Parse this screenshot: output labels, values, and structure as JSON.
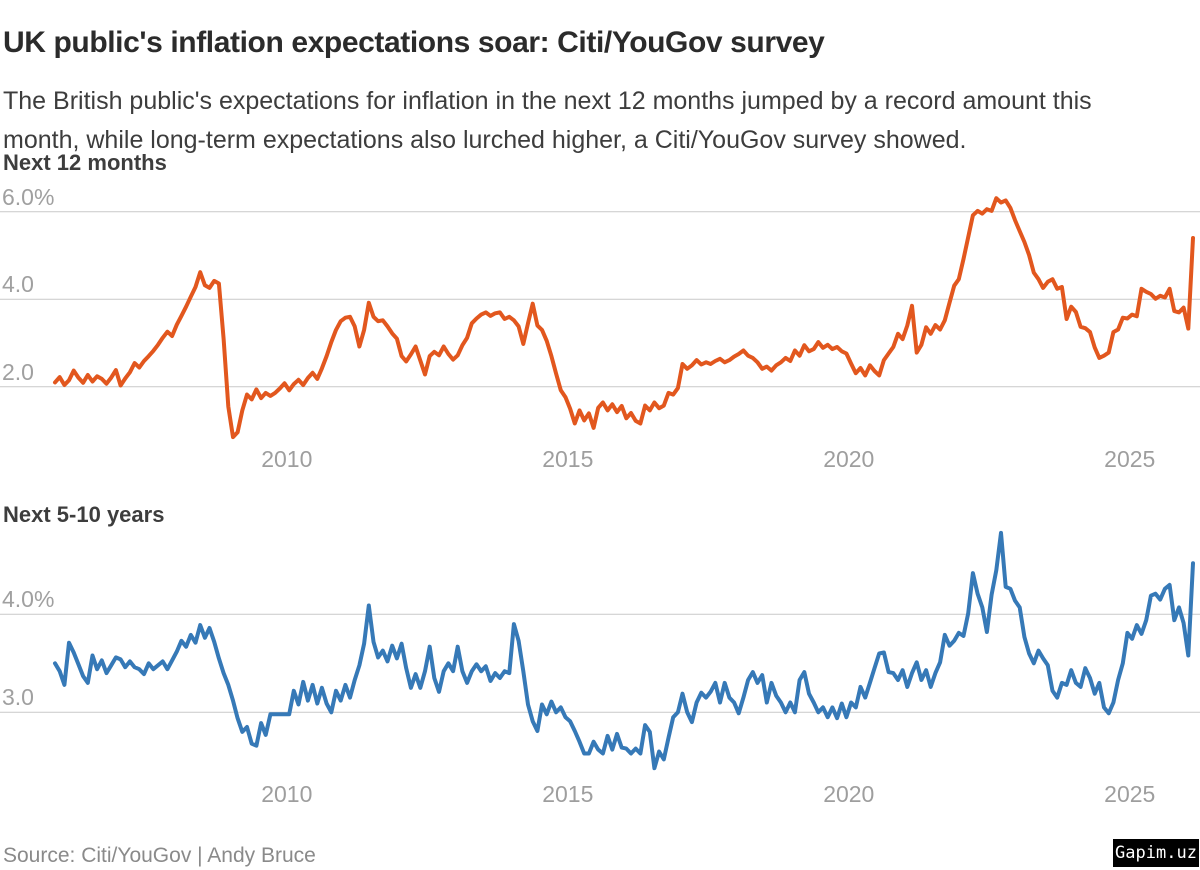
{
  "header": {
    "title": "UK public's inflation expectations soar: Citi/YouGov survey",
    "subtitle": "The British public's expectations for inflation in the next 12 months jumped by a record amount this month, while long-term expectations also lurched higher, a Citi/YouGov survey showed."
  },
  "footer": {
    "source": "Source: Citi/YouGov | Andy Bruce",
    "watermark": "Gapim.uz"
  },
  "colors": {
    "line_next_12_months": "#e2571e",
    "line_next_5_10_years": "#3679b7",
    "gridline": "#c9c9c9",
    "axis_text": "#9e9e9e",
    "heading_text": "#3d3d3d",
    "title_text": "#2b2b2b"
  },
  "chart_data": [
    {
      "type": "line",
      "title": "Next 12 months",
      "legend_position": "none",
      "grid": "horizontal-only",
      "x_axis": {
        "range": [
          2005.875,
          2026.125
        ],
        "ticks": [
          2010,
          2015,
          2020,
          2025
        ],
        "tick_labels": [
          "2010",
          "2015",
          "2020",
          "2025"
        ]
      },
      "y_axis": {
        "range": [
          0.6,
          6.75
        ],
        "unit": "percent",
        "gridlines": [
          {
            "value": 6.0,
            "label": "6.0%"
          },
          {
            "value": 4.0,
            "label": "4.0"
          },
          {
            "value": 2.0,
            "label": "2.0"
          }
        ]
      },
      "series": [
        {
          "name": "UK public inflation expectations, next 12 months (%)",
          "color": "#e2571e",
          "x_start": 2005.875,
          "x_step": 0.0833333,
          "values": [
            2.1,
            2.22,
            2.04,
            2.15,
            2.37,
            2.21,
            2.09,
            2.27,
            2.12,
            2.24,
            2.18,
            2.07,
            2.21,
            2.38,
            2.03,
            2.19,
            2.33,
            2.54,
            2.44,
            2.59,
            2.7,
            2.82,
            2.96,
            3.12,
            3.26,
            3.16,
            3.42,
            3.62,
            3.83,
            4.06,
            4.28,
            4.62,
            4.32,
            4.26,
            4.42,
            4.36,
            3.1,
            1.55,
            0.85,
            0.96,
            1.46,
            1.82,
            1.71,
            1.94,
            1.74,
            1.86,
            1.79,
            1.86,
            1.96,
            2.08,
            1.92,
            2.06,
            2.16,
            2.04,
            2.2,
            2.32,
            2.18,
            2.42,
            2.7,
            3.02,
            3.3,
            3.5,
            3.58,
            3.6,
            3.38,
            2.92,
            3.3,
            3.92,
            3.6,
            3.5,
            3.52,
            3.38,
            3.22,
            3.1,
            2.7,
            2.58,
            2.74,
            2.92,
            2.6,
            2.28,
            2.7,
            2.8,
            2.72,
            2.92,
            2.75,
            2.62,
            2.72,
            2.95,
            3.12,
            3.45,
            3.56,
            3.65,
            3.7,
            3.62,
            3.68,
            3.7,
            3.55,
            3.6,
            3.52,
            3.38,
            2.98,
            3.45,
            3.9,
            3.4,
            3.3,
            3.05,
            2.7,
            2.3,
            1.92,
            1.76,
            1.5,
            1.16,
            1.46,
            1.23,
            1.39,
            1.06,
            1.52,
            1.64,
            1.46,
            1.6,
            1.42,
            1.56,
            1.28,
            1.4,
            1.22,
            1.16,
            1.57,
            1.46,
            1.64,
            1.51,
            1.57,
            1.86,
            1.82,
            1.97,
            2.52,
            2.41,
            2.49,
            2.61,
            2.51,
            2.56,
            2.52,
            2.59,
            2.64,
            2.56,
            2.61,
            2.69,
            2.75,
            2.83,
            2.71,
            2.66,
            2.56,
            2.41,
            2.46,
            2.37,
            2.49,
            2.56,
            2.66,
            2.59,
            2.83,
            2.71,
            2.95,
            2.81,
            2.86,
            3.02,
            2.89,
            2.96,
            2.86,
            2.91,
            2.81,
            2.76,
            2.53,
            2.31,
            2.43,
            2.26,
            2.49,
            2.36,
            2.26,
            2.61,
            2.76,
            2.91,
            3.21,
            3.09,
            3.4,
            3.85,
            2.78,
            2.96,
            3.36,
            3.21,
            3.41,
            3.31,
            3.52,
            3.92,
            4.31,
            4.46,
            4.92,
            5.42,
            5.92,
            6.02,
            5.96,
            6.06,
            6.02,
            6.31,
            6.21,
            6.26,
            6.09,
            5.81,
            5.56,
            5.31,
            5.01,
            4.61,
            4.46,
            4.26,
            4.4,
            4.46,
            4.24,
            4.28,
            3.55,
            3.83,
            3.71,
            3.37,
            3.34,
            3.25,
            2.9,
            2.66,
            2.71,
            2.78,
            3.25,
            3.31,
            3.58,
            3.56,
            3.65,
            3.61,
            4.24,
            4.17,
            4.12,
            4.01,
            4.08,
            4.04,
            4.24,
            3.73,
            3.7,
            3.81,
            3.33,
            5.4
          ]
        }
      ]
    },
    {
      "type": "line",
      "title": "Next 5-10 years",
      "legend_position": "none",
      "grid": "horizontal-only",
      "x_axis": {
        "range": [
          2005.875,
          2026.125
        ],
        "ticks": [
          2010,
          2015,
          2020,
          2025
        ],
        "tick_labels": [
          "2010",
          "2015",
          "2020",
          "2025"
        ]
      },
      "y_axis": {
        "range": [
          2.32,
          4.86
        ],
        "unit": "percent",
        "gridlines": [
          {
            "value": 4.0,
            "label": "4.0%"
          },
          {
            "value": 3.0,
            "label": "3.0"
          }
        ]
      },
      "series": [
        {
          "name": "UK public inflation expectations, next 5-10 years (%)",
          "color": "#3679b7",
          "x_start": 2005.875,
          "x_step": 0.0833333,
          "values": [
            3.5,
            3.42,
            3.28,
            3.71,
            3.61,
            3.49,
            3.37,
            3.3,
            3.58,
            3.44,
            3.53,
            3.4,
            3.48,
            3.56,
            3.54,
            3.46,
            3.52,
            3.46,
            3.44,
            3.39,
            3.5,
            3.44,
            3.48,
            3.52,
            3.44,
            3.53,
            3.62,
            3.73,
            3.67,
            3.79,
            3.71,
            3.89,
            3.76,
            3.86,
            3.72,
            3.55,
            3.4,
            3.28,
            3.12,
            2.94,
            2.8,
            2.85,
            2.68,
            2.66,
            2.89,
            2.77,
            2.98,
            2.98,
            2.98,
            2.98,
            2.98,
            3.22,
            3.08,
            3.31,
            3.12,
            3.28,
            3.09,
            3.25,
            3.09,
            3.0,
            3.22,
            3.12,
            3.28,
            3.15,
            3.33,
            3.48,
            3.7,
            4.09,
            3.72,
            3.56,
            3.63,
            3.52,
            3.68,
            3.55,
            3.7,
            3.45,
            3.25,
            3.39,
            3.25,
            3.42,
            3.67,
            3.35,
            3.21,
            3.42,
            3.5,
            3.42,
            3.67,
            3.42,
            3.3,
            3.42,
            3.49,
            3.42,
            3.47,
            3.32,
            3.4,
            3.35,
            3.42,
            3.4,
            3.9,
            3.73,
            3.42,
            3.08,
            2.91,
            2.81,
            3.08,
            2.98,
            3.11,
            3.0,
            3.05,
            2.95,
            2.91,
            2.81,
            2.7,
            2.58,
            2.58,
            2.7,
            2.62,
            2.58,
            2.76,
            2.62,
            2.78,
            2.64,
            2.63,
            2.58,
            2.63,
            2.58,
            2.87,
            2.8,
            2.43,
            2.6,
            2.52,
            2.74,
            2.95,
            3.0,
            3.19,
            3.0,
            2.9,
            3.1,
            3.2,
            3.15,
            3.21,
            3.3,
            3.1,
            3.3,
            3.15,
            3.1,
            2.99,
            3.15,
            3.33,
            3.41,
            3.3,
            3.38,
            3.1,
            3.3,
            3.17,
            3.1,
            3.0,
            3.1,
            3.0,
            3.33,
            3.41,
            3.19,
            3.1,
            3.0,
            3.05,
            2.95,
            3.05,
            2.94,
            3.09,
            2.95,
            3.1,
            3.05,
            3.26,
            3.15,
            3.3,
            3.45,
            3.6,
            3.61,
            3.41,
            3.4,
            3.33,
            3.43,
            3.26,
            3.4,
            3.51,
            3.33,
            3.43,
            3.26,
            3.4,
            3.51,
            3.79,
            3.68,
            3.73,
            3.81,
            3.78,
            4.01,
            4.42,
            4.21,
            4.07,
            3.82,
            4.2,
            4.45,
            4.83,
            4.28,
            4.26,
            4.14,
            4.07,
            3.77,
            3.6,
            3.5,
            3.63,
            3.55,
            3.48,
            3.22,
            3.15,
            3.3,
            3.28,
            3.43,
            3.3,
            3.26,
            3.45,
            3.35,
            3.19,
            3.3,
            3.05,
            2.99,
            3.1,
            3.33,
            3.5,
            3.81,
            3.75,
            3.89,
            3.8,
            3.94,
            4.19,
            4.21,
            4.15,
            4.26,
            4.3,
            3.94,
            4.07,
            3.91,
            3.58,
            4.52
          ]
        }
      ]
    }
  ]
}
